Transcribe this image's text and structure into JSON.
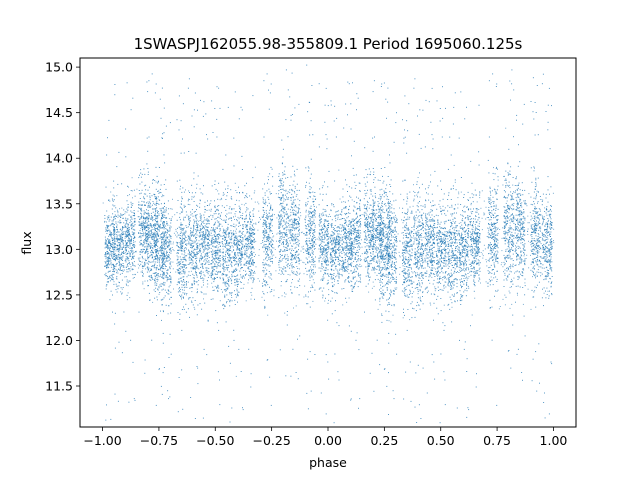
{
  "chart_data": {
    "type": "scatter",
    "title": "1SWASPJ162055.98-355809.1 Period 1695060.125s",
    "xlabel": "phase",
    "ylabel": "flux",
    "xlim": [
      -1.1,
      1.1
    ],
    "ylim": [
      11.05,
      15.1
    ],
    "xticks": [
      -1.0,
      -0.75,
      -0.5,
      -0.25,
      0.0,
      0.25,
      0.5,
      0.75,
      1.0
    ],
    "xtick_labels": [
      "−1.00",
      "−0.75",
      "−0.50",
      "−0.25",
      "0.00",
      "0.25",
      "0.50",
      "0.75",
      "1.00"
    ],
    "yticks": [
      11.5,
      12.0,
      12.5,
      13.0,
      13.5,
      14.0,
      14.5,
      15.0
    ],
    "ytick_labels": [
      "11.5",
      "12.0",
      "12.5",
      "13.0",
      "13.5",
      "14.0",
      "14.5",
      "15.0"
    ],
    "grid": false,
    "point_color": "#1f77b4",
    "folded_range": [
      -1.0,
      1.0
    ],
    "clusters": [
      {
        "phase": -0.97,
        "center": 13.0,
        "spread": 0.22
      },
      {
        "phase": -0.93,
        "center": 13.05,
        "spread": 0.2
      },
      {
        "phase": -0.88,
        "center": 13.1,
        "spread": 0.22
      },
      {
        "phase": -0.82,
        "center": 13.2,
        "spread": 0.25
      },
      {
        "phase": -0.78,
        "center": 13.15,
        "spread": 0.25
      },
      {
        "phase": -0.75,
        "center": 13.05,
        "spread": 0.3
      },
      {
        "phase": -0.72,
        "center": 13.0,
        "spread": 0.3
      },
      {
        "phase": -0.65,
        "center": 12.95,
        "spread": 0.3
      },
      {
        "phase": -0.6,
        "center": 13.0,
        "spread": 0.28
      },
      {
        "phase": -0.55,
        "center": 13.05,
        "spread": 0.25
      },
      {
        "phase": -0.5,
        "center": 13.0,
        "spread": 0.25
      },
      {
        "phase": -0.45,
        "center": 12.95,
        "spread": 0.28
      },
      {
        "phase": -0.4,
        "center": 13.0,
        "spread": 0.25
      },
      {
        "phase": -0.35,
        "center": 13.05,
        "spread": 0.22
      },
      {
        "phase": -0.27,
        "center": 13.15,
        "spread": 0.28
      },
      {
        "phase": -0.2,
        "center": 13.25,
        "spread": 0.3
      },
      {
        "phase": -0.15,
        "center": 13.2,
        "spread": 0.3
      },
      {
        "phase": -0.08,
        "center": 13.15,
        "spread": 0.28
      },
      {
        "phase": -0.02,
        "center": 13.05,
        "spread": 0.25
      },
      {
        "phase": 0.03,
        "center": 13.0,
        "spread": 0.22
      },
      {
        "phase": 0.08,
        "center": 13.05,
        "spread": 0.22
      },
      {
        "phase": 0.12,
        "center": 13.1,
        "spread": 0.25
      },
      {
        "phase": 0.18,
        "center": 13.2,
        "spread": 0.25
      },
      {
        "phase": 0.22,
        "center": 13.15,
        "spread": 0.25
      },
      {
        "phase": 0.25,
        "center": 13.05,
        "spread": 0.3
      },
      {
        "phase": 0.28,
        "center": 13.0,
        "spread": 0.3
      },
      {
        "phase": 0.35,
        "center": 12.95,
        "spread": 0.3
      },
      {
        "phase": 0.4,
        "center": 13.0,
        "spread": 0.28
      },
      {
        "phase": 0.45,
        "center": 13.05,
        "spread": 0.25
      },
      {
        "phase": 0.5,
        "center": 13.0,
        "spread": 0.25
      },
      {
        "phase": 0.55,
        "center": 12.95,
        "spread": 0.28
      },
      {
        "phase": 0.6,
        "center": 13.0,
        "spread": 0.25
      },
      {
        "phase": 0.65,
        "center": 13.05,
        "spread": 0.22
      },
      {
        "phase": 0.73,
        "center": 13.15,
        "spread": 0.28
      },
      {
        "phase": 0.8,
        "center": 13.25,
        "spread": 0.3
      },
      {
        "phase": 0.85,
        "center": 13.2,
        "spread": 0.3
      },
      {
        "phase": 0.92,
        "center": 13.15,
        "spread": 0.28
      },
      {
        "phase": 0.97,
        "center": 13.05,
        "spread": 0.25
      }
    ]
  }
}
